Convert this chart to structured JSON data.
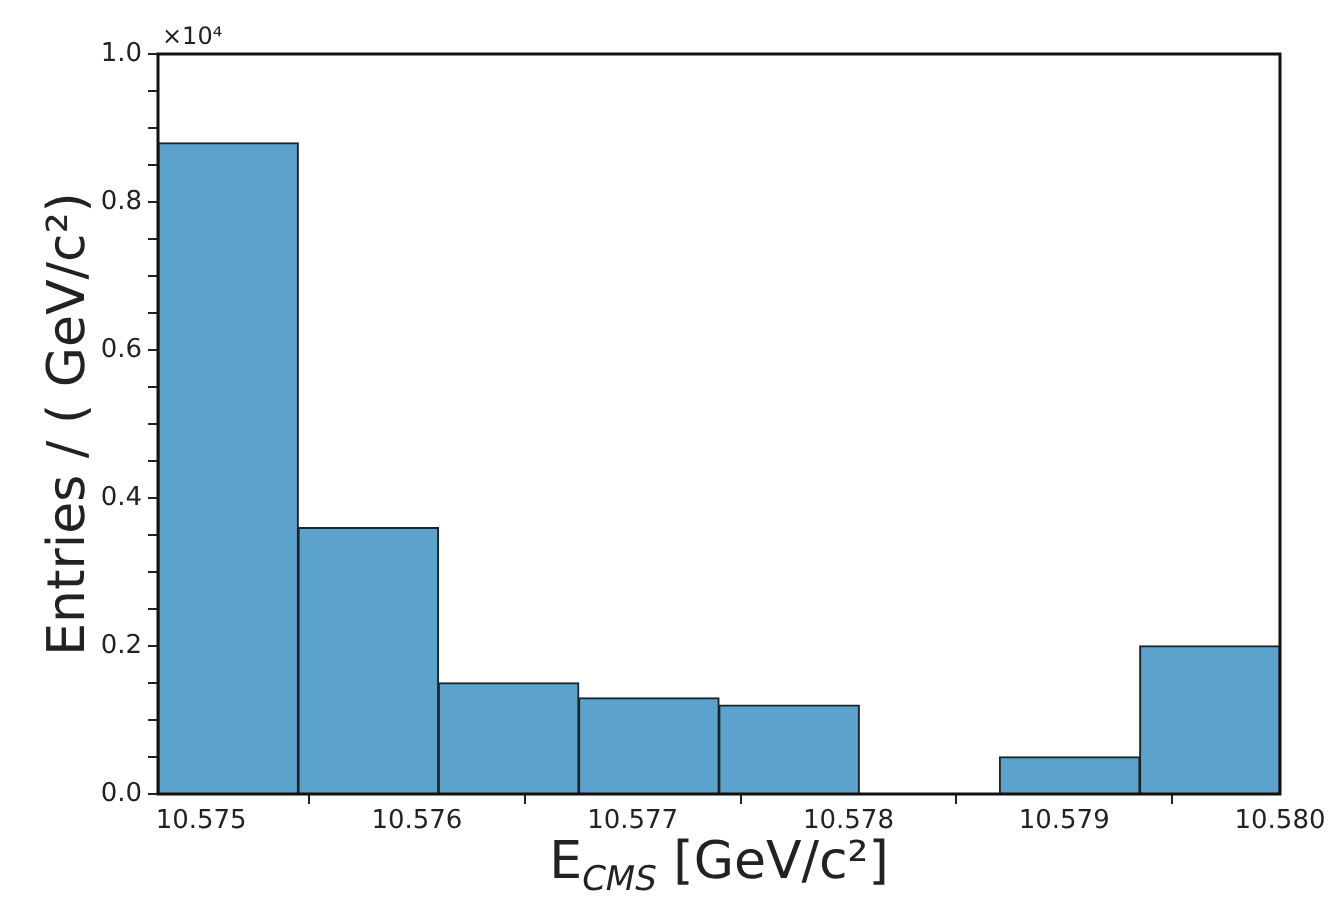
{
  "chart_data": {
    "type": "histogram",
    "xlabel": "E$_{CMS}$ [GeV/c²]",
    "ylabel": "Entries / ( GeV/c²)",
    "annotations": [
      "×10⁴"
    ],
    "bins": [
      10.5748,
      10.57545,
      10.5761,
      10.57675,
      10.5774,
      10.57805,
      10.5787,
      10.57935,
      10.58
    ],
    "values": [
      0.88,
      0.36,
      0.15,
      0.13,
      0.12,
      0,
      0.05,
      0.2
    ],
    "color": "#5ba3cc",
    "xlim": [
      10.5748,
      10.58
    ],
    "xticks": [
      {
        "value": 10.575,
        "label": "10.575"
      },
      {
        "value": 10.576,
        "label": "10.576"
      },
      {
        "value": 10.577,
        "label": "10.577"
      },
      {
        "value": 10.578,
        "label": "10.578"
      },
      {
        "value": 10.579,
        "label": "10.579"
      },
      {
        "value": 10.58,
        "label": "10.580"
      }
    ],
    "ylim": [
      0,
      1
    ],
    "yticks": [
      {
        "value": 0,
        "label": "0.0"
      },
      {
        "value": 0.05,
        "label": null
      },
      {
        "value": 0.1,
        "label": null
      },
      {
        "value": 0.15,
        "label": null
      },
      {
        "value": 0.2,
        "label": "0.2"
      },
      {
        "value": 0.25,
        "label": null
      },
      {
        "value": 0.3,
        "label": null
      },
      {
        "value": 0.35,
        "label": null
      },
      {
        "value": 0.4,
        "label": "0.4"
      },
      {
        "value": 0.45,
        "label": null
      },
      {
        "value": 0.5,
        "label": null
      },
      {
        "value": 0.55,
        "label": null
      },
      {
        "value": 0.6,
        "label": "0.6"
      },
      {
        "value": 0.65,
        "label": null
      },
      {
        "value": 0.7,
        "label": null
      },
      {
        "value": 0.75,
        "label": null
      },
      {
        "value": 0.8,
        "label": "0.8"
      },
      {
        "value": 0.85,
        "label": null
      },
      {
        "value": 0.9,
        "label": null
      },
      {
        "value": 0.95,
        "label": null
      },
      {
        "value": 1,
        "label": "1.0"
      }
    ]
  }
}
